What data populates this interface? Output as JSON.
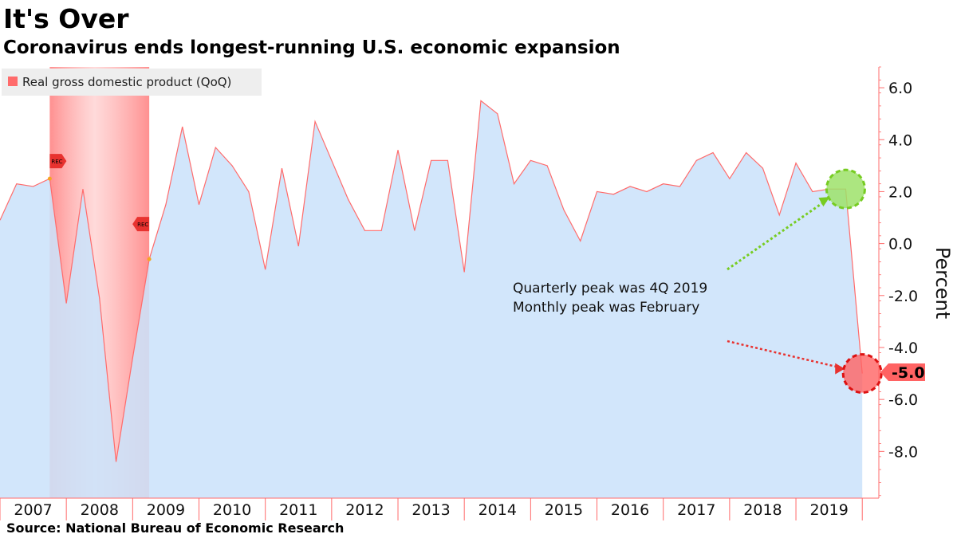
{
  "header": {
    "title": "It's Over",
    "subtitle": "Coronavirus ends longest-running U.S. economic expansion"
  },
  "footer": {
    "source": "Source: National Bureau of Economic Research"
  },
  "colors": {
    "area_fill": "#cce3fb",
    "line": "#ff6b6b",
    "recession_band": "#ff8080",
    "axis": "#ff6b6b",
    "peak_marker": "#9ee26a",
    "peak_marker_stroke": "#77cc22",
    "trough_marker": "#ff6363",
    "trough_marker_stroke": "#dd1111",
    "legend_bg": "#eeeeee"
  },
  "chart_data": {
    "type": "area",
    "title": "It's Over",
    "subtitle": "Coronavirus ends longest-running U.S. economic expansion",
    "ylabel": "Percent",
    "xlabel": "",
    "ylim": [
      -9.8,
      6.8
    ],
    "xlim": [
      2007.0,
      2020.25
    ],
    "yticks": [
      6,
      4,
      2,
      0,
      -2,
      -4,
      -6,
      -8
    ],
    "ytick_labels": [
      "6.0",
      "4.0",
      "2.0",
      "0.0",
      "-2.0",
      "-4.0",
      "-6.0",
      "-8.0"
    ],
    "x_categories": [
      "2007",
      "2008",
      "2009",
      "2010",
      "2011",
      "2012",
      "2013",
      "2014",
      "2015",
      "2016",
      "2017",
      "2018",
      "2019"
    ],
    "legend": [
      "Real gross domestic product (QoQ)"
    ],
    "legend_position": "top-left",
    "series": [
      {
        "name": "Real gross domestic product (QoQ)",
        "x": [
          2007.0,
          2007.25,
          2007.5,
          2007.75,
          2008.0,
          2008.25,
          2008.5,
          2008.75,
          2009.0,
          2009.25,
          2009.5,
          2009.75,
          2010.0,
          2010.25,
          2010.5,
          2010.75,
          2011.0,
          2011.25,
          2011.5,
          2011.75,
          2012.0,
          2012.25,
          2012.5,
          2012.75,
          2013.0,
          2013.25,
          2013.5,
          2013.75,
          2014.0,
          2014.25,
          2014.5,
          2014.75,
          2015.0,
          2015.25,
          2015.5,
          2015.75,
          2016.0,
          2016.25,
          2016.5,
          2016.75,
          2017.0,
          2017.25,
          2017.5,
          2017.75,
          2018.0,
          2018.25,
          2018.5,
          2018.75,
          2019.0,
          2019.25,
          2019.5,
          2019.75,
          2020.0
        ],
        "values": [
          0.9,
          2.3,
          2.2,
          2.5,
          -2.3,
          2.1,
          -2.1,
          -8.4,
          -4.4,
          -0.6,
          1.5,
          4.5,
          1.5,
          3.7,
          3.0,
          2.0,
          -1.0,
          2.9,
          -0.1,
          4.7,
          3.2,
          1.7,
          0.5,
          0.5,
          3.6,
          0.5,
          3.2,
          3.2,
          -1.1,
          5.5,
          5.0,
          2.3,
          3.2,
          3.0,
          1.3,
          0.1,
          2.0,
          1.9,
          2.2,
          2.0,
          2.3,
          2.2,
          3.2,
          3.5,
          2.5,
          3.5,
          2.9,
          1.1,
          3.1,
          2.0,
          2.1,
          2.1,
          -5.0
        ]
      }
    ],
    "recession": {
      "start": 2007.75,
      "end": 2009.25,
      "start_label": "REC",
      "end_label": "REC"
    },
    "last_value_label": "-5.0",
    "annotations": {
      "line1": "Quarterly peak was 4Q 2019",
      "line2": "Monthly peak was February"
    },
    "peak_marker": {
      "x": 2019.75,
      "y": 2.1
    },
    "trough_marker": {
      "x": 2020.0,
      "y": -5.0
    }
  }
}
